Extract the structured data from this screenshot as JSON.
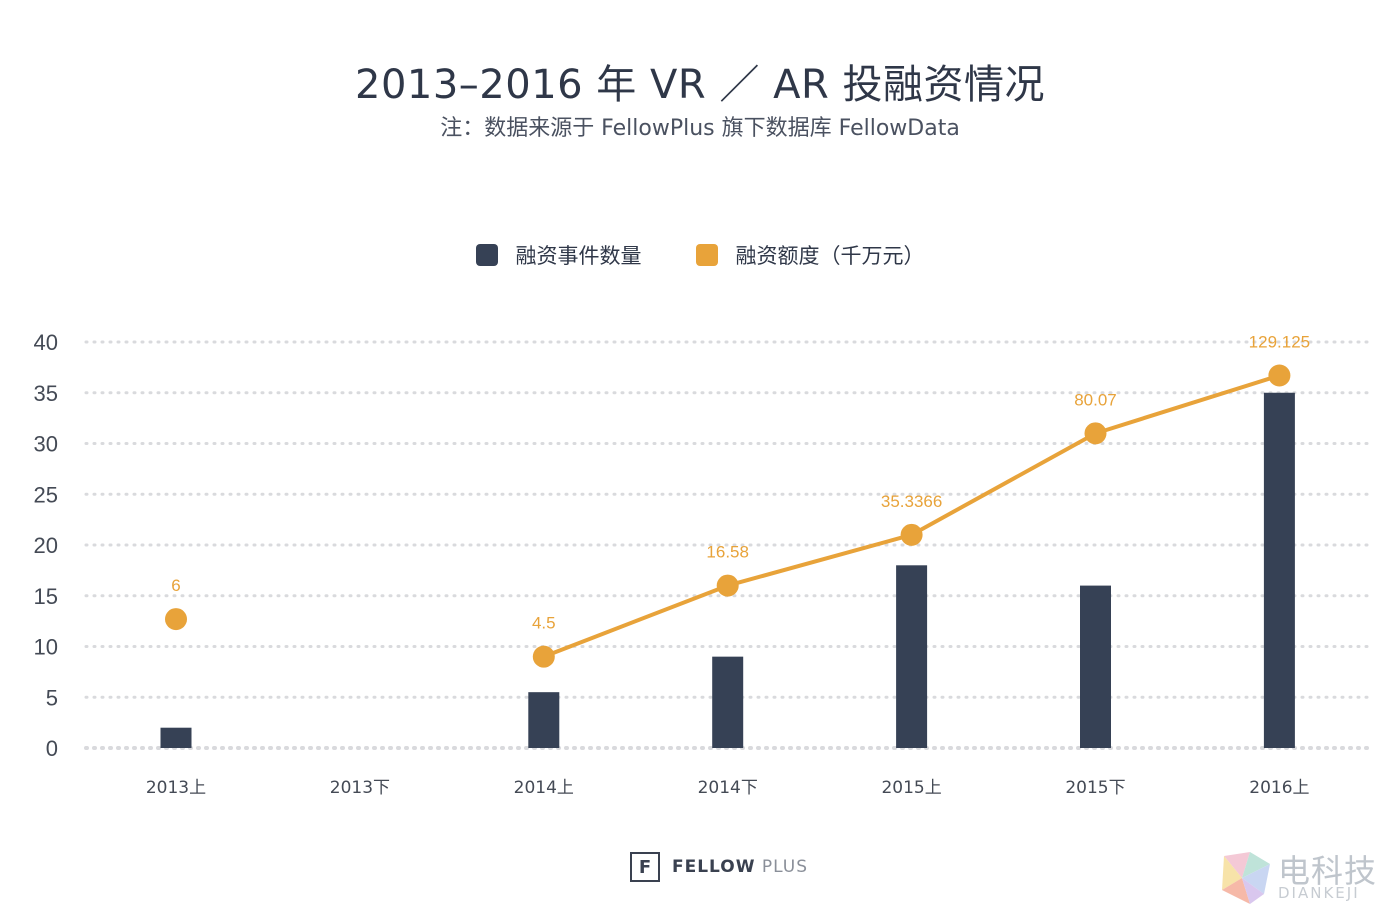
{
  "header": {
    "title": "2013–2016 年 VR ／ AR 投融资情况",
    "subtitle": "注：数据来源于 FellowPlus 旗下数据库 FellowData"
  },
  "legend": {
    "count_label": "融资事件数量",
    "amount_label": "融资额度（千万元）"
  },
  "colors": {
    "bar": "#364155",
    "line": "#e8a33a",
    "grid": "#d9dadd",
    "axis_text": "#444a55"
  },
  "chart_data": {
    "type": "bar",
    "title": "2013–2016 年 VR ／ AR 投融资情况",
    "categories": [
      "2013上",
      "2013下",
      "2014上",
      "2014下",
      "2015上",
      "2015下",
      "2016上"
    ],
    "ylim": [
      0,
      40
    ],
    "yticks": [
      0,
      5,
      10,
      15,
      20,
      25,
      30,
      35,
      40
    ],
    "grid": true,
    "legend_position": "top-center",
    "series": [
      {
        "name": "融资事件数量",
        "type": "bar",
        "values": [
          2,
          null,
          5.5,
          9,
          18,
          16,
          35
        ]
      },
      {
        "name": "融资额度（千万元）",
        "type": "line",
        "plot_values": [
          12.7,
          null,
          9,
          16,
          21,
          31,
          36.7
        ],
        "labels": [
          "6",
          "",
          "4.5",
          "16.58",
          "35.3366",
          "80.07",
          "129.125"
        ],
        "connected_from_index": 2
      }
    ]
  },
  "footer": {
    "brand_bold": "FELLOW",
    "brand_light": "PLUS",
    "logo_glyph": "F"
  },
  "watermark": {
    "cn": "电科技",
    "en": "DIANKEJI"
  }
}
